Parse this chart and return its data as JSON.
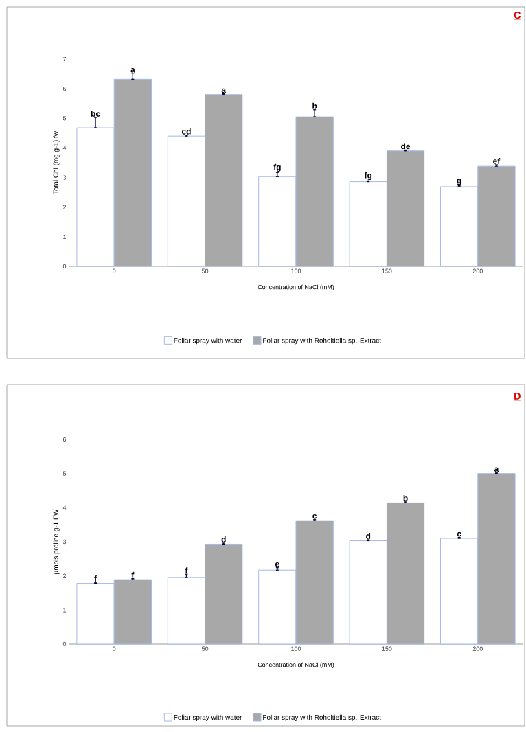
{
  "chart_data": [
    {
      "type": "bar",
      "title": "C",
      "xlabel": "Concentration of NaCl (mM)",
      "ylabel": "Total Chl (mg g-1) fw",
      "categories": [
        "0",
        "50",
        "100",
        "150",
        "200"
      ],
      "series": [
        {
          "name": "Foliar spray with water",
          "color": "#ffffff",
          "values": [
            4.68,
            4.4,
            3.03,
            2.86,
            2.69
          ],
          "errors": [
            [
              4.68,
              5.03
            ],
            [
              4.4,
              4.43
            ],
            [
              3.03,
              3.17
            ],
            [
              2.86,
              2.89
            ],
            [
              2.69,
              2.72
            ]
          ],
          "value_labels": [
            "bc",
            "cd",
            "fg",
            "fg",
            "g"
          ]
        },
        {
          "name": "Foliar spray with Roholtiella sp. Extract",
          "color": "#a8a8a8",
          "values": [
            6.32,
            5.8,
            5.05,
            3.9,
            3.38
          ],
          "errors": [
            [
              6.32,
              6.52
            ],
            [
              5.8,
              5.83
            ],
            [
              5.05,
              5.29
            ],
            [
              3.9,
              3.93
            ],
            [
              3.38,
              3.43
            ]
          ],
          "value_labels": [
            "a",
            "a",
            "b",
            "de",
            "ef"
          ]
        }
      ],
      "ylim": [
        0,
        7
      ],
      "yticks": [
        0,
        1,
        2,
        3,
        4,
        5,
        6,
        7
      ],
      "grid": false,
      "legend": "bottom"
    },
    {
      "type": "bar",
      "title": "D",
      "xlabel": "Concentration of NaCl (mM)",
      "ylabel": "µmols proline g-1 FW",
      "categories": [
        "0",
        "50",
        "100",
        "150",
        "200"
      ],
      "series": [
        {
          "name": "Foliar spray with water",
          "color": "#ffffff",
          "values": [
            1.78,
            1.95,
            2.17,
            3.03,
            3.1
          ],
          "errors": [
            [
              1.78,
              1.81
            ],
            [
              1.95,
              2.05
            ],
            [
              2.17,
              2.24
            ],
            [
              3.03,
              3.06
            ],
            [
              3.1,
              3.13
            ]
          ],
          "value_labels": [
            "f",
            "f",
            "e",
            "d",
            "c"
          ]
        },
        {
          "name": "Foliar spray with Roholtiella sp. Extract",
          "color": "#a8a8a8",
          "values": [
            1.89,
            2.93,
            3.62,
            4.14,
            5.0
          ],
          "errors": [
            [
              1.89,
              1.92
            ],
            [
              2.93,
              2.96
            ],
            [
              3.62,
              3.65
            ],
            [
              4.14,
              4.17
            ],
            [
              5.0,
              5.03
            ]
          ],
          "value_labels": [
            "f",
            "d",
            "c",
            "b",
            "a"
          ]
        }
      ],
      "ylim": [
        0,
        6
      ],
      "yticks": [
        0,
        1,
        2,
        3,
        4,
        5,
        6
      ],
      "grid": false,
      "legend": "bottom"
    }
  ]
}
